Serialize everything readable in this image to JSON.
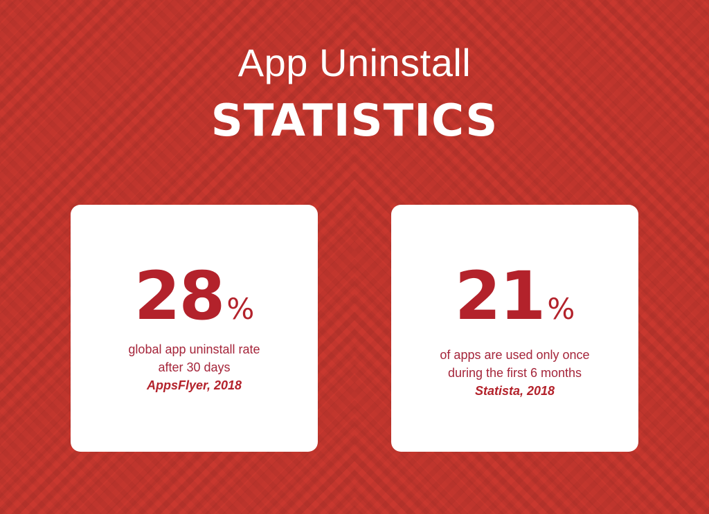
{
  "title": {
    "line1": "App Uninstall",
    "line2": "STATISTICS"
  },
  "cards": [
    {
      "number": "28",
      "unit": "%",
      "description_line1": "global app uninstall rate",
      "description_line2": "after 30 days",
      "source": "AppsFlyer, 2018"
    },
    {
      "number": "21",
      "unit": "%",
      "description_line1": "of apps are used only once",
      "description_line2": "during the first 6 months",
      "source": "Statista, 2018"
    }
  ],
  "colors": {
    "background": "#c9382f",
    "card": "#ffffff",
    "accent": "#b3222b",
    "text": "#a5253a"
  }
}
